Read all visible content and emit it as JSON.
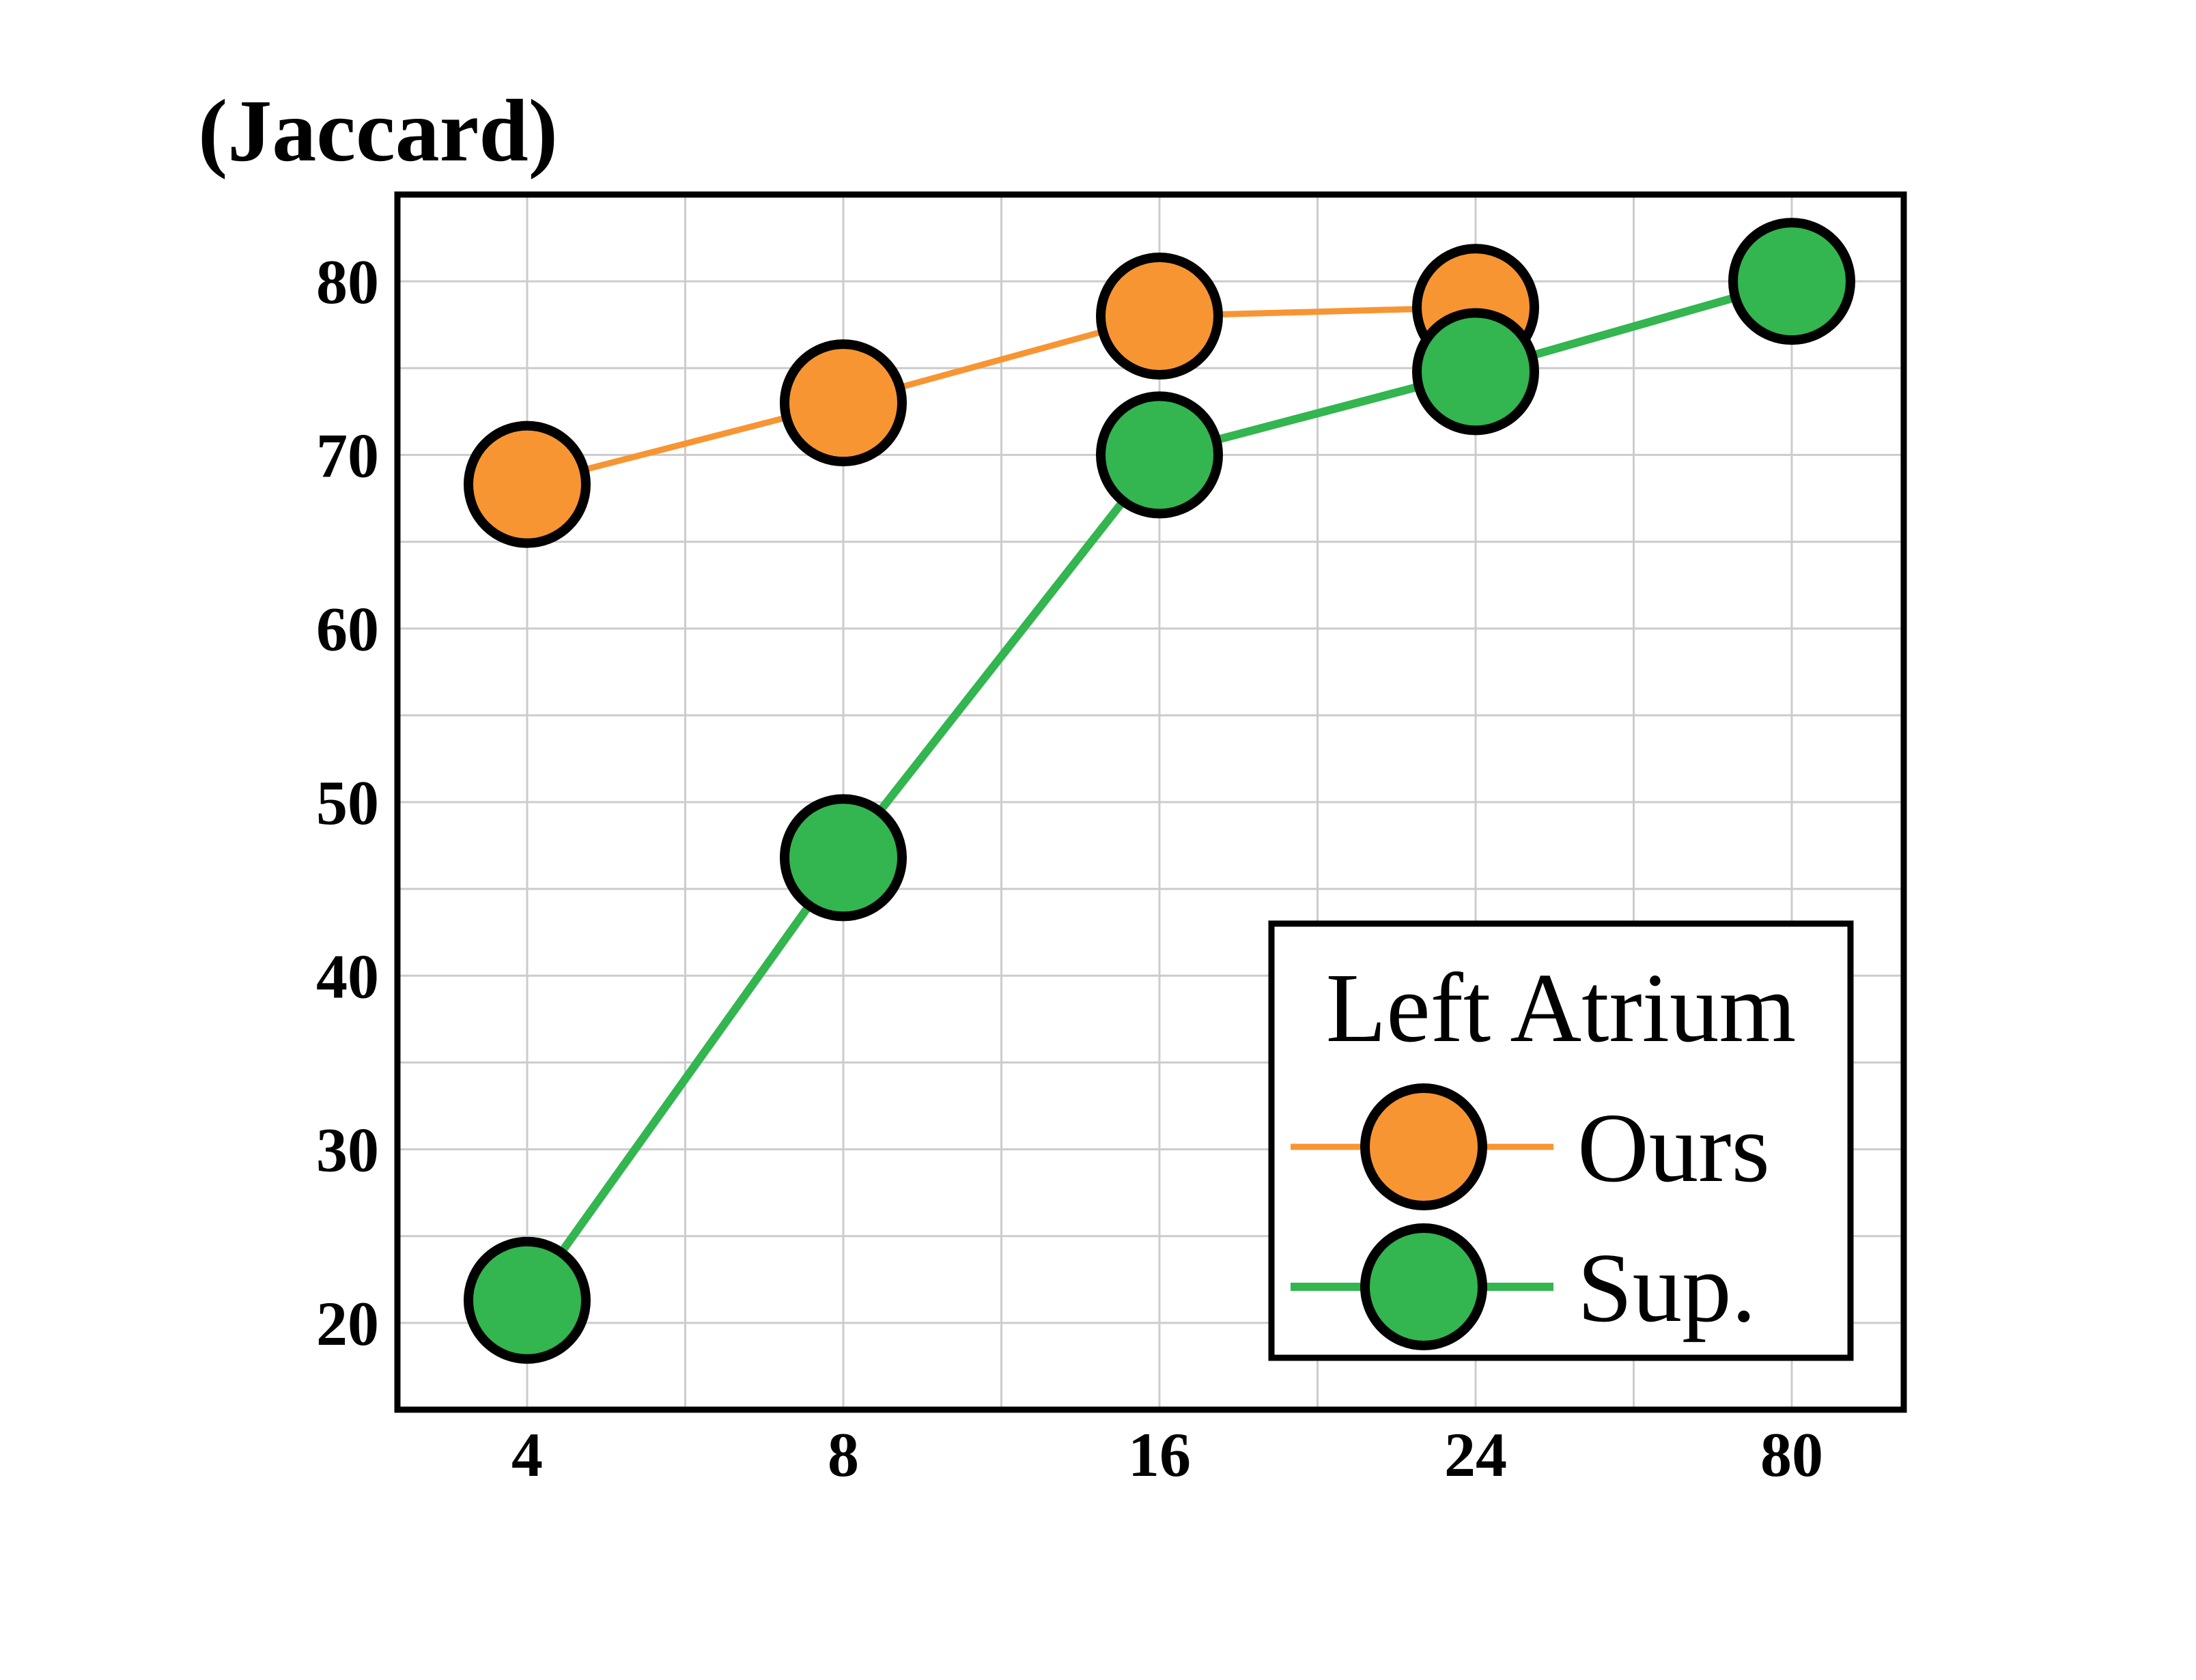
{
  "chart_data": {
    "type": "line",
    "title": "",
    "xlabel": "",
    "ylabel": "(Jaccard)",
    "categories": [
      "4",
      "8",
      "16",
      "24",
      "80"
    ],
    "ylim": [
      15,
      85
    ],
    "yticks": [
      20,
      30,
      40,
      50,
      60,
      70,
      80
    ],
    "grid": true,
    "legend": {
      "title": "Left Atrium",
      "position": "bottom-right"
    },
    "series": [
      {
        "name": "Ours",
        "color": "#f79533",
        "values": [
          68.3,
          73.0,
          78.0,
          78.5,
          null
        ]
      },
      {
        "name": "Sup.",
        "color": "#33b54f",
        "values": [
          21.3,
          46.8,
          70.0,
          74.8,
          80.0
        ]
      }
    ],
    "marker_edge_color": "#000000"
  }
}
